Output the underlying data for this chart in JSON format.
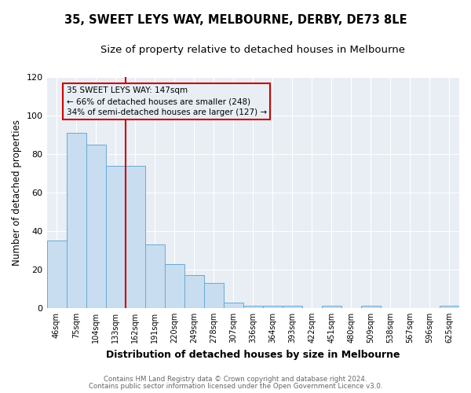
{
  "title": "35, SWEET LEYS WAY, MELBOURNE, DERBY, DE73 8LE",
  "subtitle": "Size of property relative to detached houses in Melbourne",
  "xlabel": "Distribution of detached houses by size in Melbourne",
  "ylabel": "Number of detached properties",
  "categories": [
    "46sqm",
    "75sqm",
    "104sqm",
    "133sqm",
    "162sqm",
    "191sqm",
    "220sqm",
    "249sqm",
    "278sqm",
    "307sqm",
    "336sqm",
    "364sqm",
    "393sqm",
    "422sqm",
    "451sqm",
    "480sqm",
    "509sqm",
    "538sqm",
    "567sqm",
    "596sqm",
    "625sqm"
  ],
  "values": [
    35,
    91,
    85,
    74,
    74,
    33,
    23,
    17,
    13,
    3,
    1,
    1,
    1,
    0,
    1,
    0,
    1,
    0,
    0,
    0,
    1
  ],
  "bar_color": "#c8ddef",
  "bar_edge_color": "#6aaad4",
  "marker_label": "35 SWEET LEYS WAY: 147sqm",
  "annotation_line1": "← 66% of detached houses are smaller (248)",
  "annotation_line2": "34% of semi-detached houses are larger (127) →",
  "vline_color": "#cc0000",
  "vline_x": 3.5,
  "ylim": [
    0,
    120
  ],
  "yticks": [
    0,
    20,
    40,
    60,
    80,
    100,
    120
  ],
  "bg_color": "#ffffff",
  "plot_bg_color": "#e8eef4",
  "grid_color": "#ffffff",
  "footer1": "Contains HM Land Registry data © Crown copyright and database right 2024.",
  "footer2": "Contains public sector information licensed under the Open Government Licence v3.0.",
  "annotation_box_color": "#cc0000",
  "title_fontsize": 10.5,
  "subtitle_fontsize": 9.5,
  "ylabel_fontsize": 8.5,
  "xlabel_fontsize": 9
}
